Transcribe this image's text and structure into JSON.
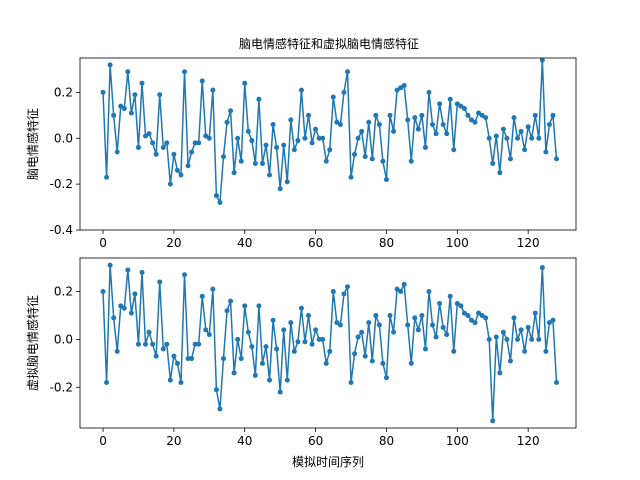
{
  "title": "脑电情感特征和虚拟脑电情感特征",
  "chart_data": [
    {
      "type": "line",
      "name": "top",
      "ylabel": "脑电情感特征",
      "xlabel": "",
      "xlim": [
        -6.5,
        133.5
      ],
      "ylim": [
        -0.4,
        0.35
      ],
      "xticks": [
        0,
        20,
        40,
        60,
        80,
        100,
        120
      ],
      "yticks": [
        -0.4,
        -0.2,
        0.0,
        0.2
      ],
      "ytick_labels": [
        "-0.4",
        "-0.2",
        "0.0",
        "0.2"
      ],
      "color": "#1f77b4",
      "marker": "circle",
      "series": [
        {
          "values": [
            0.2,
            -0.17,
            0.32,
            0.1,
            -0.06,
            0.14,
            0.13,
            0.29,
            0.11,
            0.19,
            -0.04,
            0.24,
            0.01,
            0.02,
            -0.02,
            -0.07,
            0.19,
            -0.04,
            -0.02,
            -0.2,
            -0.07,
            -0.14,
            -0.16,
            0.29,
            -0.12,
            -0.06,
            -0.02,
            -0.02,
            0.25,
            0.01,
            0.0,
            0.21,
            -0.25,
            -0.28,
            -0.08,
            0.07,
            0.12,
            -0.15,
            0.0,
            -0.1,
            0.24,
            0.03,
            -0.01,
            -0.11,
            0.17,
            -0.11,
            -0.03,
            -0.16,
            0.06,
            -0.04,
            -0.22,
            -0.03,
            -0.19,
            0.08,
            -0.05,
            -0.01,
            0.21,
            0.0,
            0.1,
            -0.02,
            0.04,
            0.0,
            0.0,
            -0.1,
            -0.05,
            0.18,
            0.07,
            0.06,
            0.2,
            0.29,
            -0.17,
            -0.07,
            0.0,
            0.03,
            -0.08,
            0.07,
            -0.09,
            0.1,
            0.06,
            -0.1,
            -0.18,
            0.1,
            0.03,
            0.21,
            0.22,
            0.23,
            0.08,
            -0.1,
            0.09,
            0.04,
            0.1,
            -0.04,
            0.2,
            0.06,
            0.02,
            0.15,
            0.06,
            0.02,
            0.17,
            -0.05,
            0.15,
            0.14,
            0.13,
            0.1,
            0.08,
            0.07,
            0.11,
            0.1,
            0.09,
            0.0,
            -0.11,
            0.01,
            -0.15,
            0.04,
            0.0,
            -0.09,
            0.09,
            0.0,
            0.03,
            -0.05,
            0.05,
            0.0,
            0.1,
            0.0,
            0.34,
            -0.06,
            0.06,
            0.1,
            -0.09
          ]
        }
      ]
    },
    {
      "type": "line",
      "name": "bottom",
      "ylabel": "虚拟脑电情感特征",
      "xlabel": "模拟时间序列",
      "xlim": [
        -6.5,
        133.5
      ],
      "ylim": [
        -0.37,
        0.34
      ],
      "xticks": [
        0,
        20,
        40,
        60,
        80,
        100,
        120
      ],
      "yticks": [
        -0.2,
        0.0,
        0.2
      ],
      "ytick_labels": [
        "-0.2",
        "0.0",
        "0.2"
      ],
      "color": "#1f77b4",
      "marker": "circle",
      "series": [
        {
          "values": [
            0.2,
            -0.18,
            0.31,
            0.09,
            -0.05,
            0.14,
            0.13,
            0.29,
            0.11,
            0.19,
            -0.02,
            0.28,
            -0.02,
            0.03,
            -0.02,
            -0.07,
            0.24,
            -0.04,
            -0.02,
            -0.17,
            -0.07,
            -0.1,
            -0.18,
            0.27,
            -0.08,
            -0.08,
            -0.02,
            -0.02,
            0.18,
            0.04,
            0.02,
            0.21,
            -0.21,
            -0.29,
            -0.08,
            0.12,
            0.16,
            -0.14,
            0.0,
            -0.08,
            0.14,
            0.03,
            -0.03,
            -0.15,
            0.14,
            -0.1,
            -0.03,
            -0.17,
            0.08,
            -0.04,
            -0.22,
            0.04,
            -0.17,
            0.07,
            -0.05,
            -0.01,
            0.13,
            -0.01,
            0.1,
            -0.02,
            0.04,
            0.0,
            0.0,
            -0.1,
            -0.05,
            0.2,
            0.07,
            0.06,
            0.19,
            0.22,
            -0.18,
            -0.06,
            0.01,
            0.03,
            -0.07,
            0.07,
            -0.09,
            0.1,
            0.06,
            -0.1,
            -0.16,
            0.1,
            0.03,
            0.21,
            0.2,
            0.23,
            0.06,
            -0.1,
            0.09,
            0.04,
            0.1,
            -0.04,
            0.2,
            0.06,
            0.01,
            0.15,
            0.05,
            0.02,
            0.18,
            -0.05,
            0.15,
            0.14,
            0.11,
            0.1,
            0.08,
            0.07,
            0.11,
            0.1,
            0.09,
            0.0,
            -0.34,
            0.01,
            -0.14,
            0.03,
            0.0,
            -0.09,
            0.09,
            0.0,
            0.04,
            -0.05,
            0.05,
            0.0,
            0.11,
            0.0,
            0.3,
            -0.05,
            0.07,
            0.08,
            -0.18
          ]
        }
      ]
    }
  ]
}
